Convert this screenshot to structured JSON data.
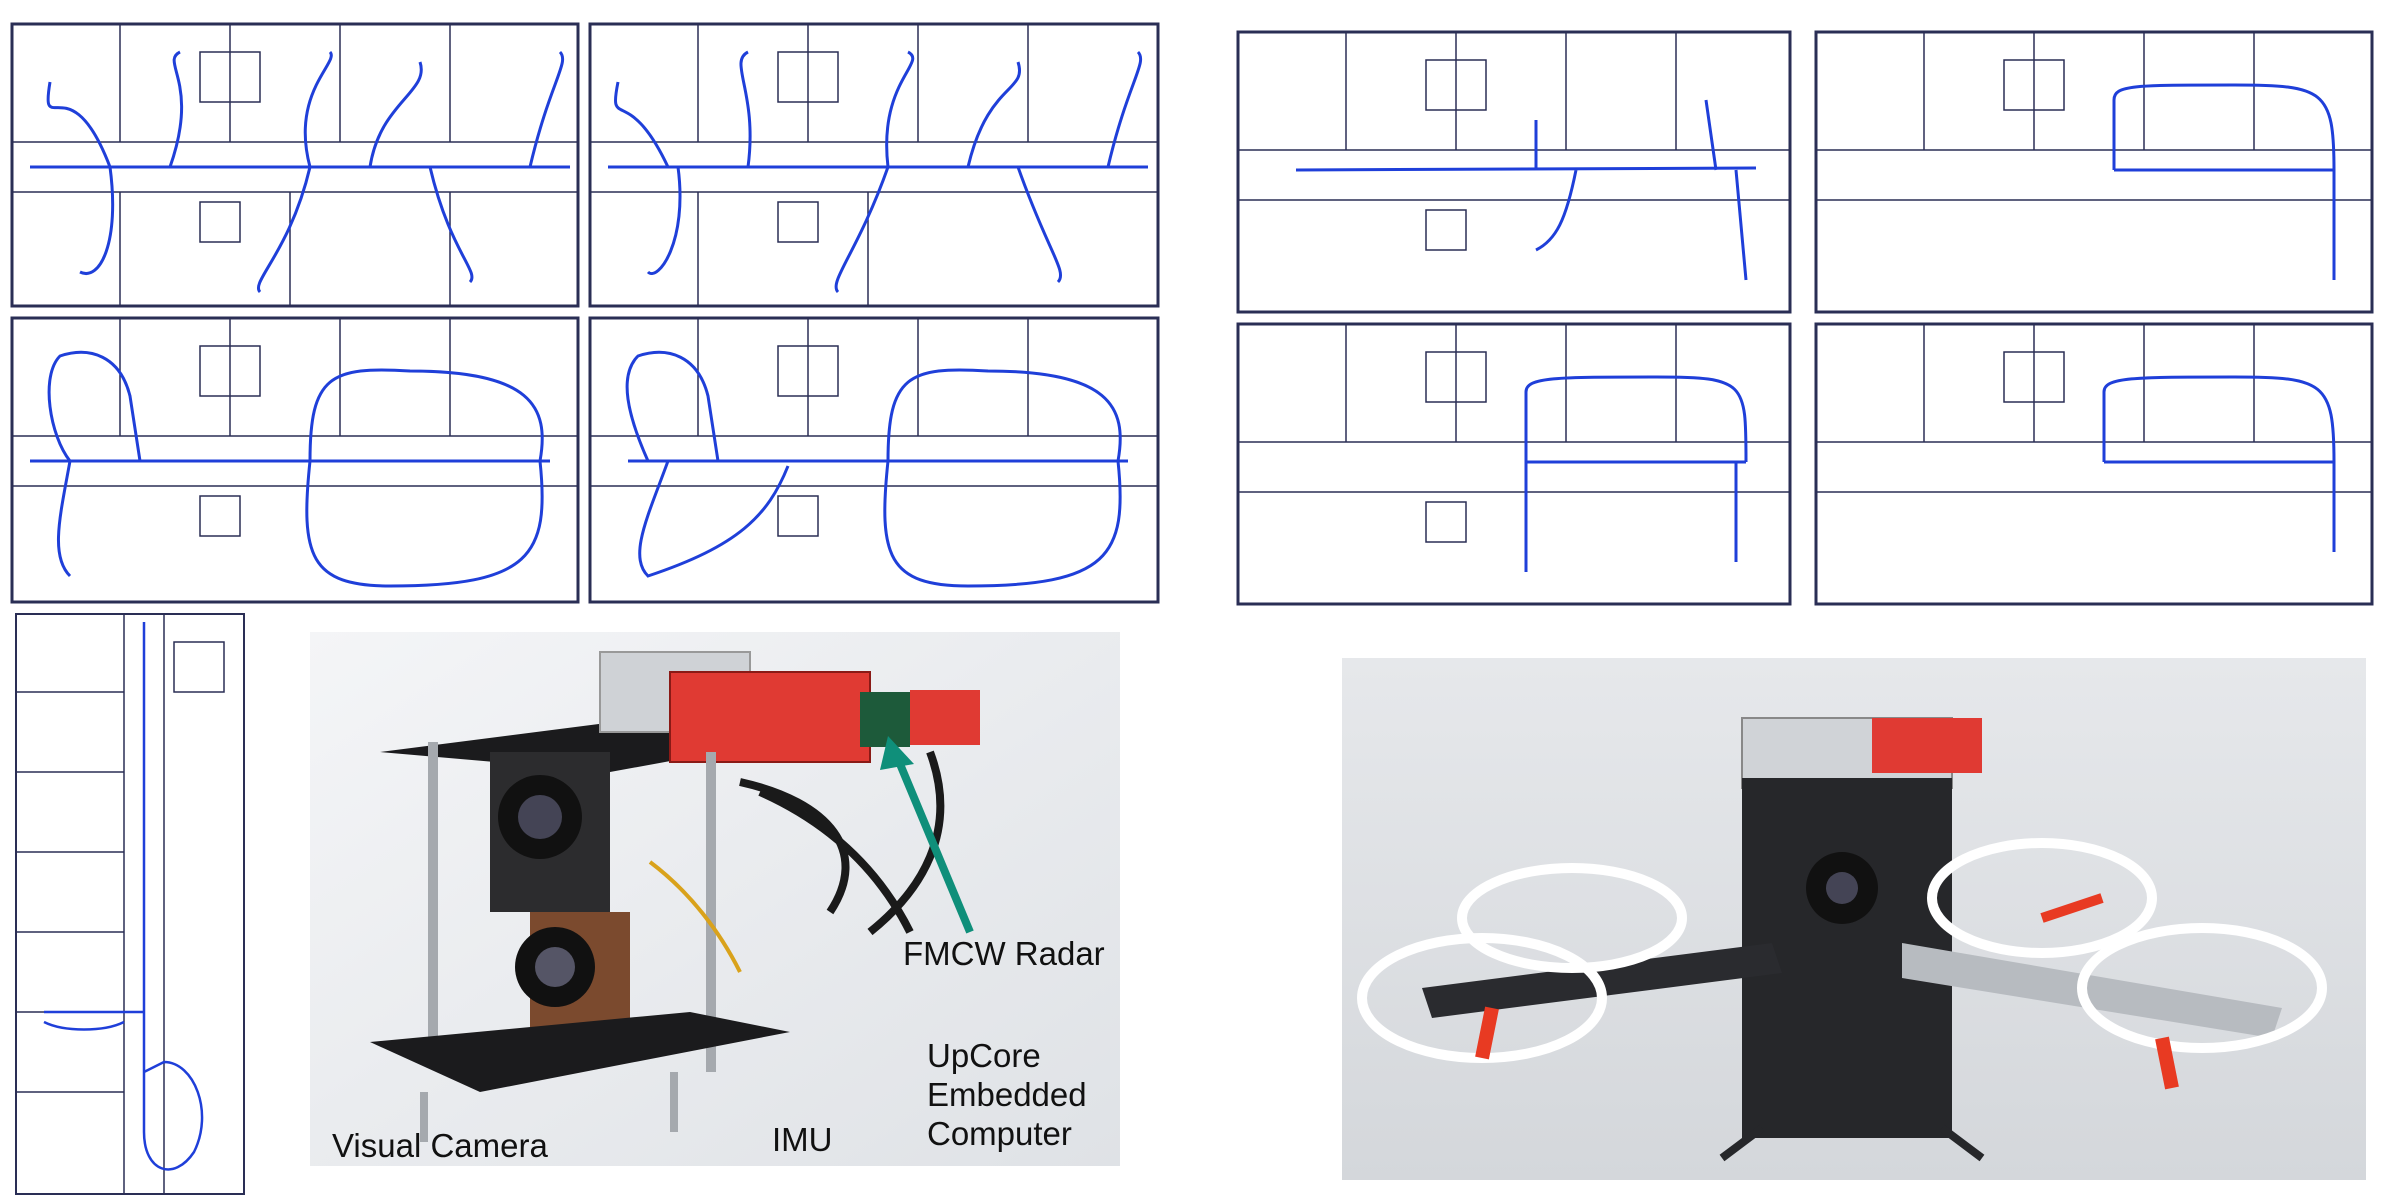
{
  "figure": {
    "colors": {
      "trajectory": "#1f3fd9",
      "floorplan_wall": "#2a2e55",
      "floorplan_bg": "#ffffff",
      "radar_pcb": "#e03a33",
      "arrow": "#0f8f7a",
      "frame_bg": "#e9ebee"
    },
    "labels": {
      "fmcw_radar": "FMCW Radar",
      "upcore_line1": "UpCore",
      "upcore_line2": "Embedded",
      "upcore_line3": "Computer",
      "visual_camera": "Visual Camera",
      "imu": "IMU"
    },
    "icons": {
      "sensor_rig_photo": "sensor-rig-photo",
      "drone_photo": "drone-photo",
      "floorplan": "floorplan-map"
    }
  }
}
